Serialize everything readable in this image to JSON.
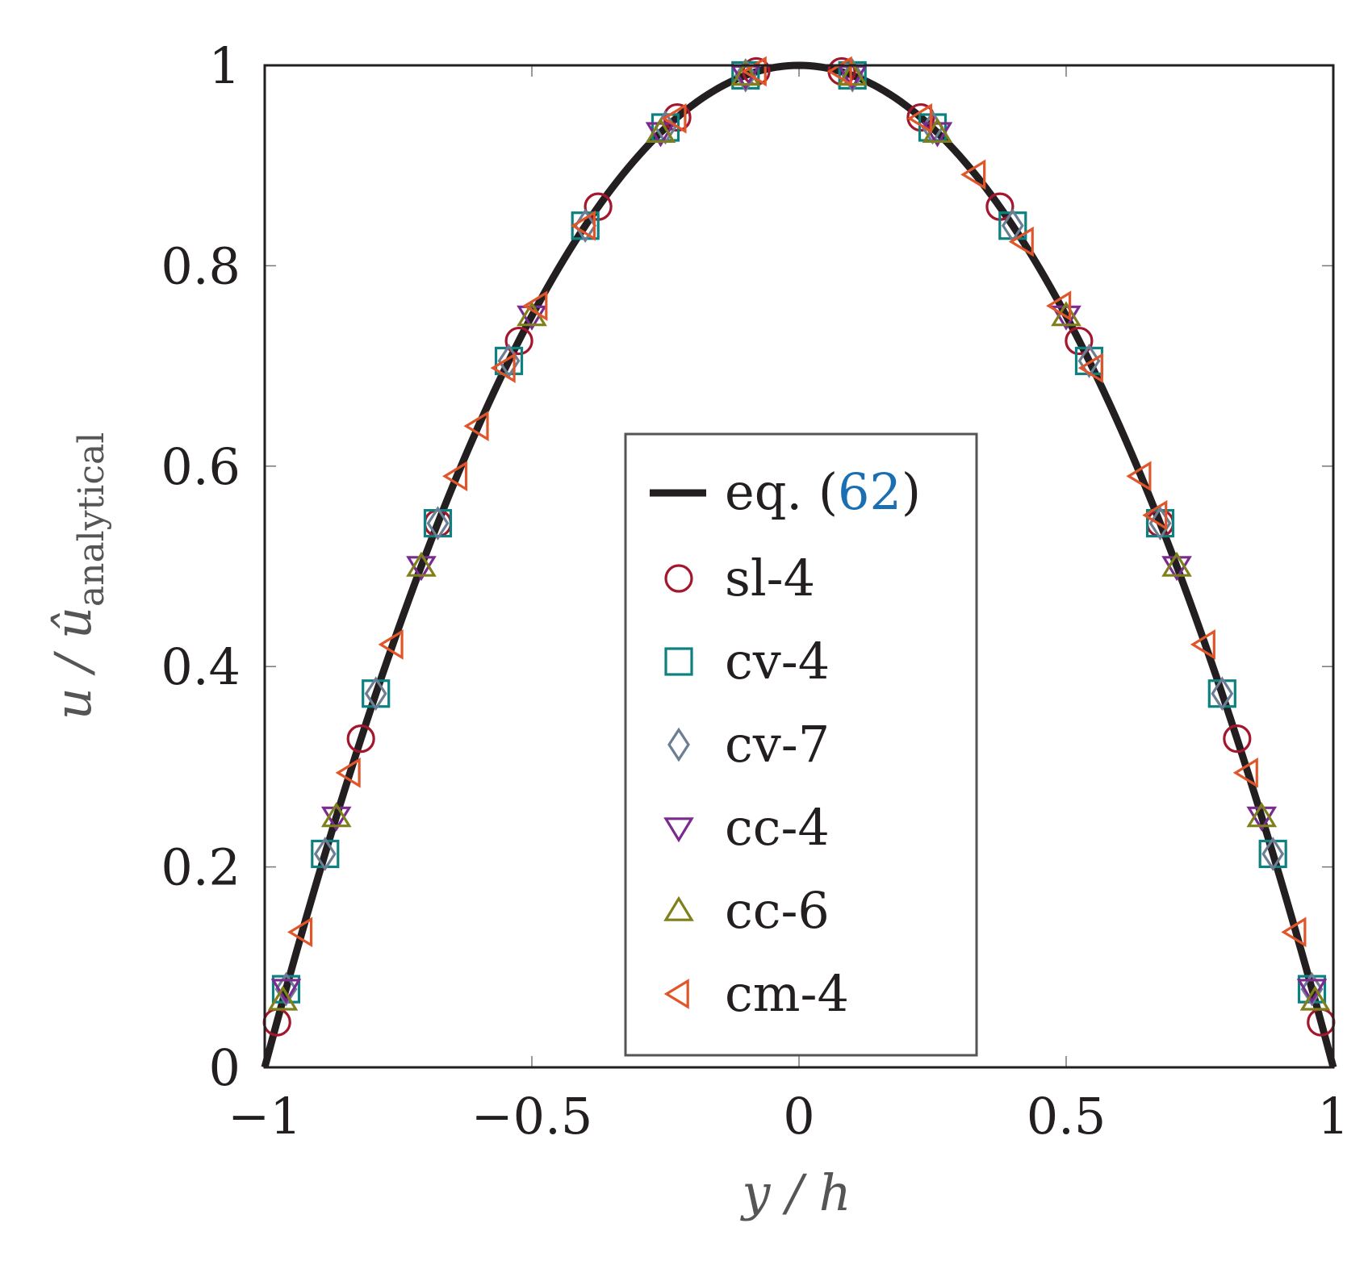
{
  "chart_data": {
    "type": "line",
    "title": "",
    "xlabel": "y / h",
    "ylabel": {
      "main": "u / û",
      "subscript": "analytical"
    },
    "xlim": [
      -1,
      1
    ],
    "ylim": [
      0,
      1
    ],
    "xticks": [
      -1,
      -0.5,
      0,
      0.5,
      1
    ],
    "xtick_labels": [
      "−1",
      "−0.5",
      "0",
      "0.5",
      "1"
    ],
    "yticks": [
      0,
      0.2,
      0.4,
      0.6,
      0.8,
      1
    ],
    "ytick_labels": [
      "0",
      "0.2",
      "0.4",
      "0.6",
      "0.8",
      "1"
    ],
    "grid": false,
    "legend_position": "center",
    "analytical": {
      "name": "eq.",
      "ref_open": "(",
      "ref_number": "62",
      "ref_close": ")",
      "function": "1 - y^2",
      "color": "#231f20"
    },
    "series": [
      {
        "name": "sl-4",
        "marker": "circle",
        "color": "#a3162c",
        "x": [
          -0.977,
          -0.82,
          -0.676,
          -0.524,
          -0.376,
          -0.228,
          -0.08,
          0.08,
          0.228,
          0.376,
          0.524,
          0.676,
          0.82,
          0.977
        ],
        "y": [
          0.045,
          0.328,
          0.543,
          0.725,
          0.859,
          0.948,
          0.994,
          0.994,
          0.948,
          0.859,
          0.725,
          0.543,
          0.328,
          0.045
        ]
      },
      {
        "name": "cv-4",
        "marker": "square",
        "color": "#0f8080",
        "x": [
          -0.96,
          -0.887,
          -0.792,
          -0.676,
          -0.543,
          -0.4,
          -0.25,
          -0.1,
          0.1,
          0.25,
          0.4,
          0.543,
          0.676,
          0.792,
          0.887,
          0.96
        ],
        "y": [
          0.078,
          0.213,
          0.373,
          0.543,
          0.705,
          0.84,
          0.938,
          0.99,
          0.99,
          0.938,
          0.84,
          0.705,
          0.543,
          0.373,
          0.213,
          0.078
        ]
      },
      {
        "name": "cv-7",
        "marker": "diamond",
        "color": "#6b7e93",
        "x": [
          -0.96,
          -0.887,
          -0.792,
          -0.676,
          -0.543,
          -0.4,
          -0.25,
          -0.1,
          0.1,
          0.25,
          0.4,
          0.543,
          0.676,
          0.792,
          0.887,
          0.96
        ],
        "y": [
          0.078,
          0.213,
          0.373,
          0.543,
          0.705,
          0.84,
          0.938,
          0.99,
          0.99,
          0.938,
          0.84,
          0.705,
          0.543,
          0.373,
          0.213,
          0.078
        ]
      },
      {
        "name": "cc-4",
        "marker": "triangle-down",
        "color": "#7b2b8f",
        "x": [
          -0.96,
          -0.866,
          -0.707,
          -0.5,
          -0.259,
          -0.1,
          0.1,
          0.259,
          0.5,
          0.707,
          0.866,
          0.96
        ],
        "y": [
          0.078,
          0.25,
          0.5,
          0.75,
          0.933,
          0.99,
          0.99,
          0.933,
          0.75,
          0.5,
          0.25,
          0.078
        ]
      },
      {
        "name": "cc-6",
        "marker": "triangle-up",
        "color": "#7f7f1c",
        "x": [
          -0.966,
          -0.866,
          -0.707,
          -0.5,
          -0.259,
          -0.1,
          0.1,
          0.259,
          0.5,
          0.707,
          0.866,
          0.966
        ],
        "y": [
          0.067,
          0.25,
          0.5,
          0.75,
          0.933,
          0.99,
          0.99,
          0.933,
          0.75,
          0.5,
          0.25,
          0.067
        ]
      },
      {
        "name": "cm-4",
        "marker": "triangle-left",
        "color": "#e0562a",
        "x": [
          -0.93,
          -0.84,
          -0.76,
          -0.64,
          -0.6,
          -0.55,
          -0.49,
          -0.4,
          -0.23,
          -0.08,
          0.08,
          0.23,
          0.33,
          0.42,
          0.49,
          0.55,
          0.64,
          0.67,
          0.76,
          0.84,
          0.93
        ],
        "y": [
          0.135,
          0.294,
          0.422,
          0.59,
          0.64,
          0.698,
          0.76,
          0.84,
          0.947,
          0.994,
          0.994,
          0.947,
          0.891,
          0.824,
          0.76,
          0.698,
          0.59,
          0.551,
          0.422,
          0.294,
          0.135
        ]
      }
    ]
  }
}
